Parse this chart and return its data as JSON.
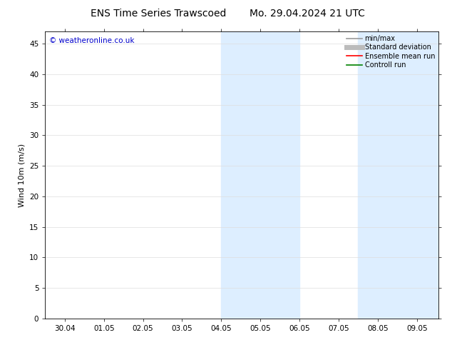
{
  "title_left": "ENS Time Series Trawscoed",
  "title_right": "Mo. 29.04.2024 21 UTC",
  "ylabel": "Wind 10m (m/s)",
  "watermark": "© weatheronline.co.uk",
  "xticklabels": [
    "30.04",
    "01.05",
    "02.05",
    "03.05",
    "04.05",
    "05.05",
    "06.05",
    "07.05",
    "08.05",
    "09.05"
  ],
  "ylim": [
    0,
    47
  ],
  "yticks": [
    0,
    5,
    10,
    15,
    20,
    25,
    30,
    35,
    40,
    45
  ],
  "background_color": "#ffffff",
  "plot_bg_color": "#ffffff",
  "shaded_bands": [
    {
      "x_start": 4.0,
      "x_end": 6.0,
      "color": "#ddeeff"
    },
    {
      "x_start": 7.5,
      "x_end": 9.55,
      "color": "#ddeeff"
    }
  ],
  "legend_entries": [
    {
      "label": "min/max",
      "color": "#999999",
      "lw": 1.2
    },
    {
      "label": "Standard deviation",
      "color": "#bbbbbb",
      "lw": 5
    },
    {
      "label": "Ensemble mean run",
      "color": "#ff0000",
      "lw": 1.2
    },
    {
      "label": "Controll run",
      "color": "#008000",
      "lw": 1.2
    }
  ],
  "title_fontsize": 10,
  "axis_fontsize": 8,
  "tick_fontsize": 7.5,
  "watermark_color": "#0000cc",
  "grid_color": "#dddddd",
  "xlim_left": -0.5,
  "xlim_right": 9.55
}
